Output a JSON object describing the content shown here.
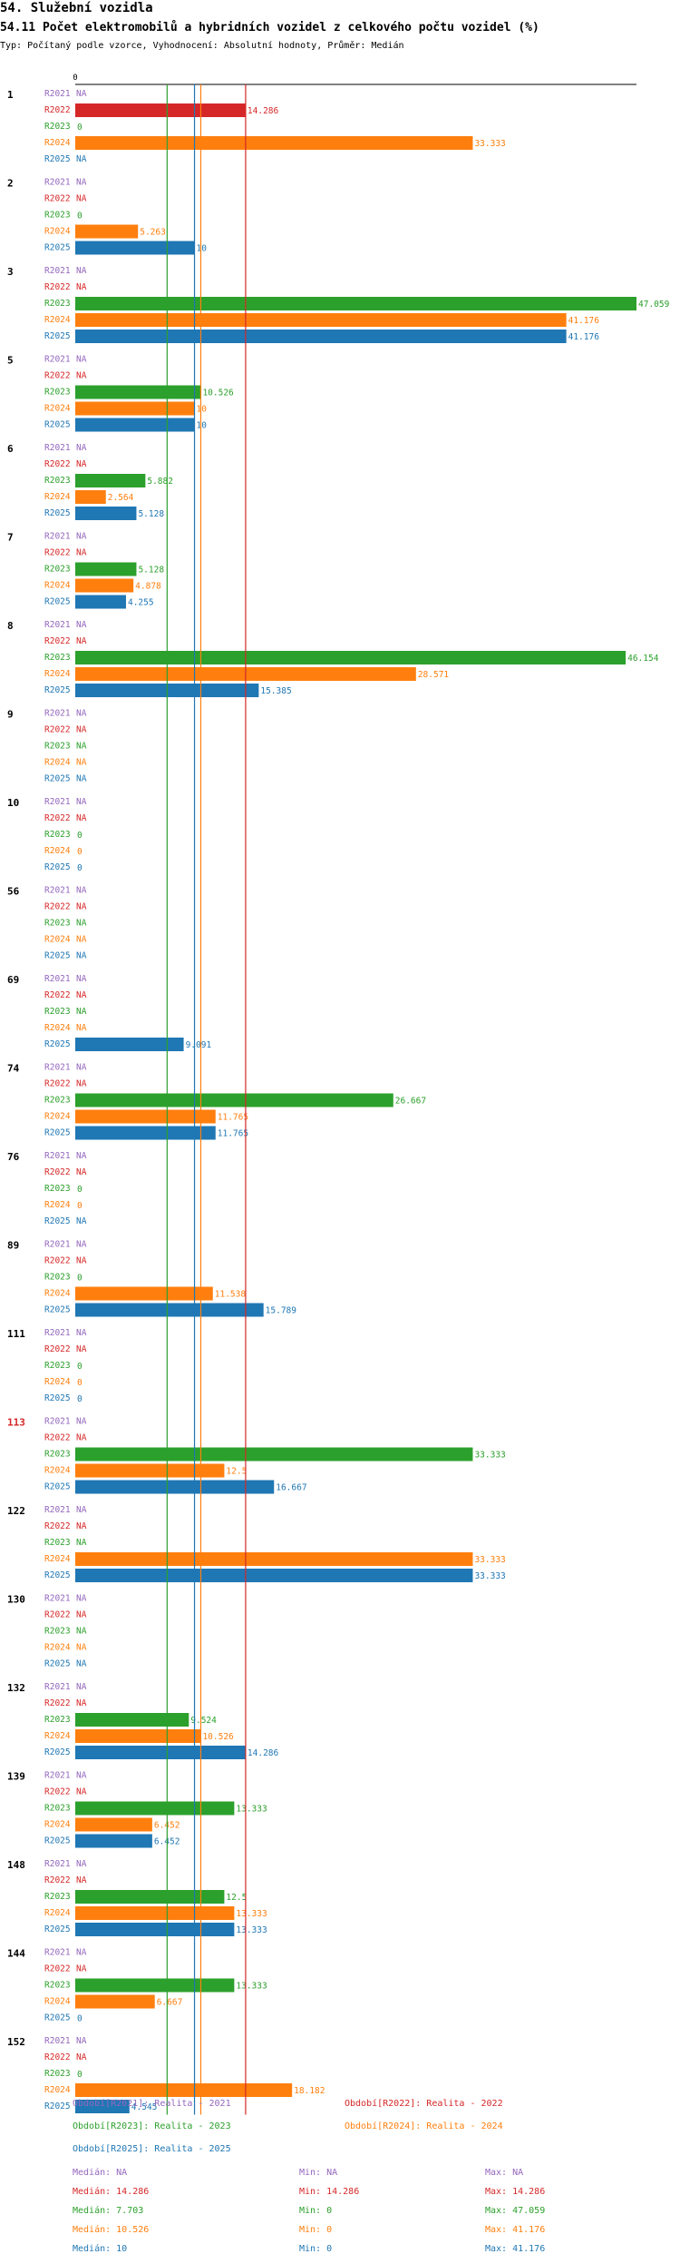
{
  "page": {
    "title": "54. Služební vozidla",
    "subtitle": "54.11 Počet elektromobilů a hybridních vozidel z celkového počtu vozidel (%)",
    "description": "Typ: Počítaný podle vzorce, Vyhodnocení: Absolutní hodnoty, Průměr: Medián"
  },
  "colors": {
    "R2021": "#9467bd",
    "R2022": "#d62728",
    "R2023": "#2ca02c",
    "R2024": "#ff7f0e",
    "R2025": "#1f77b4",
    "highlight_group": "#d62728"
  },
  "chart_data": {
    "type": "bar",
    "orientation": "horizontal",
    "xlim": [
      0,
      47.059
    ],
    "zero_tick": "0",
    "series_names": [
      "R2021",
      "R2022",
      "R2023",
      "R2024",
      "R2025"
    ],
    "missing_label": "NA",
    "groups": [
      {
        "label": "1",
        "highlight": false,
        "values": [
          null,
          14.286,
          0,
          33.333,
          null
        ]
      },
      {
        "label": "2",
        "highlight": false,
        "values": [
          null,
          null,
          0,
          5.263,
          10
        ]
      },
      {
        "label": "3",
        "highlight": false,
        "values": [
          null,
          null,
          47.059,
          41.176,
          41.176
        ]
      },
      {
        "label": "5",
        "highlight": false,
        "values": [
          null,
          null,
          10.526,
          10,
          10
        ]
      },
      {
        "label": "6",
        "highlight": false,
        "values": [
          null,
          null,
          5.882,
          2.564,
          5.128
        ]
      },
      {
        "label": "7",
        "highlight": false,
        "values": [
          null,
          null,
          5.128,
          4.878,
          4.255
        ]
      },
      {
        "label": "8",
        "highlight": false,
        "values": [
          null,
          null,
          46.154,
          28.571,
          15.385
        ]
      },
      {
        "label": "9",
        "highlight": false,
        "values": [
          null,
          null,
          null,
          null,
          null
        ]
      },
      {
        "label": "10",
        "highlight": false,
        "values": [
          null,
          null,
          0,
          0,
          0
        ]
      },
      {
        "label": "56",
        "highlight": false,
        "values": [
          null,
          null,
          null,
          null,
          null
        ]
      },
      {
        "label": "69",
        "highlight": false,
        "values": [
          null,
          null,
          null,
          null,
          9.091
        ]
      },
      {
        "label": "74",
        "highlight": false,
        "values": [
          null,
          null,
          26.667,
          11.765,
          11.765
        ]
      },
      {
        "label": "76",
        "highlight": false,
        "values": [
          null,
          null,
          0,
          0,
          null
        ]
      },
      {
        "label": "89",
        "highlight": false,
        "values": [
          null,
          null,
          0,
          11.538,
          15.789
        ]
      },
      {
        "label": "111",
        "highlight": false,
        "values": [
          null,
          null,
          0,
          0,
          0
        ]
      },
      {
        "label": "113",
        "highlight": true,
        "values": [
          null,
          null,
          33.333,
          12.5,
          16.667
        ]
      },
      {
        "label": "122",
        "highlight": false,
        "values": [
          null,
          null,
          null,
          33.333,
          33.333
        ]
      },
      {
        "label": "130",
        "highlight": false,
        "values": [
          null,
          null,
          null,
          null,
          null
        ]
      },
      {
        "label": "132",
        "highlight": false,
        "values": [
          null,
          null,
          9.524,
          10.526,
          14.286
        ]
      },
      {
        "label": "139",
        "highlight": false,
        "values": [
          null,
          null,
          13.333,
          6.452,
          6.452
        ]
      },
      {
        "label": "148",
        "highlight": false,
        "values": [
          null,
          null,
          12.5,
          13.333,
          13.333
        ]
      },
      {
        "label": "144",
        "highlight": false,
        "values": [
          null,
          null,
          13.333,
          6.667,
          0
        ]
      },
      {
        "label": "152",
        "highlight": false,
        "values": [
          null,
          null,
          0,
          18.182,
          4.545
        ]
      }
    ],
    "median_lines": [
      {
        "series": "R2022",
        "value": 14.286
      },
      {
        "series": "R2023",
        "value": 7.703
      },
      {
        "series": "R2024",
        "value": 10.526
      },
      {
        "series": "R2025",
        "value": 10
      }
    ],
    "legend": [
      {
        "series": "R2021",
        "text": "Období[R2021]: Realita - 2021"
      },
      {
        "series": "R2022",
        "text": "Období[R2022]: Realita - 2022"
      },
      {
        "series": "R2023",
        "text": "Období[R2023]: Realita - 2023"
      },
      {
        "series": "R2024",
        "text": "Období[R2024]: Realita - 2024"
      },
      {
        "series": "R2025",
        "text": "Období[R2025]: Realita - 2025"
      }
    ],
    "stats": [
      {
        "series": "R2021",
        "median": "Medián: NA",
        "min": "Min: NA",
        "max": "Max: NA"
      },
      {
        "series": "R2022",
        "median": "Medián: 14.286",
        "min": "Min: 14.286",
        "max": "Max: 14.286"
      },
      {
        "series": "R2023",
        "median": "Medián: 7.703",
        "min": "Min: 0",
        "max": "Max: 47.059"
      },
      {
        "series": "R2024",
        "median": "Medián: 10.526",
        "min": "Min: 0",
        "max": "Max: 41.176"
      },
      {
        "series": "R2025",
        "median": "Medián: 10",
        "min": "Min: 0",
        "max": "Max: 41.176"
      }
    ]
  }
}
